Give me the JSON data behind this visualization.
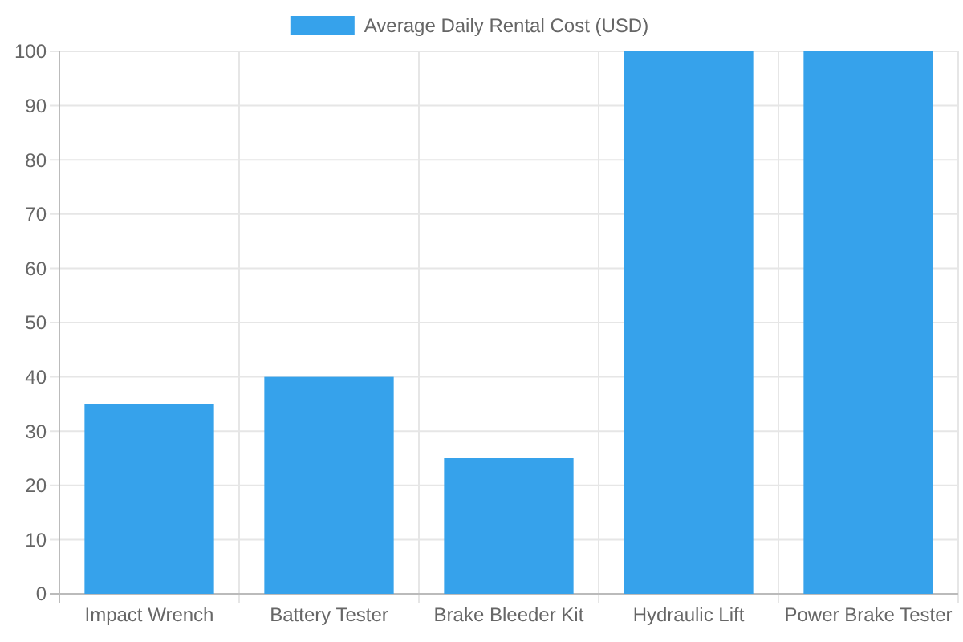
{
  "chart_data": {
    "type": "bar",
    "categories": [
      "Impact Wrench",
      "Battery Tester",
      "Brake Bleeder Kit",
      "Hydraulic Lift",
      "Power Brake Tester"
    ],
    "series": [
      {
        "name": "Average Daily Rental Cost (USD)",
        "color": "#36a2eb",
        "values": [
          35,
          40,
          25,
          100,
          100
        ]
      }
    ],
    "ylim": [
      0,
      100
    ],
    "yticks": [
      0,
      10,
      20,
      30,
      40,
      50,
      60,
      70,
      80,
      90,
      100
    ],
    "grid": true,
    "legend": "top"
  }
}
